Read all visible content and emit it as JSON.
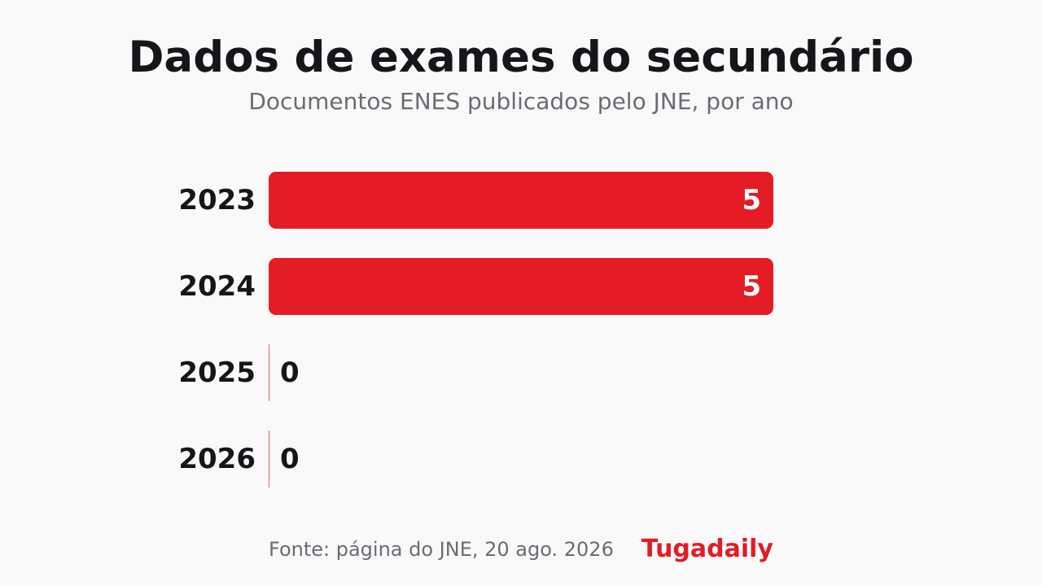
{
  "colors": {
    "accent": "#e31c25",
    "title": "#16161a",
    "muted": "#6b6b72",
    "background": "#f9f9fa"
  },
  "chart_data": {
    "type": "bar",
    "orientation": "horizontal",
    "title": "Dados de exames do secundário",
    "subtitle": "Documentos ENES publicados pelo JNE, por ano",
    "categories": [
      "2023",
      "2024",
      "2025",
      "2026"
    ],
    "values": [
      5,
      5,
      0,
      0
    ],
    "data_labels": [
      "5",
      "5",
      "0",
      "0"
    ],
    "xlim": [
      0,
      5
    ],
    "grid": false,
    "legend": "none"
  },
  "footer": {
    "source": "Fonte: página do JNE, 20 ago. 2026",
    "brand": "Tugadaily"
  }
}
